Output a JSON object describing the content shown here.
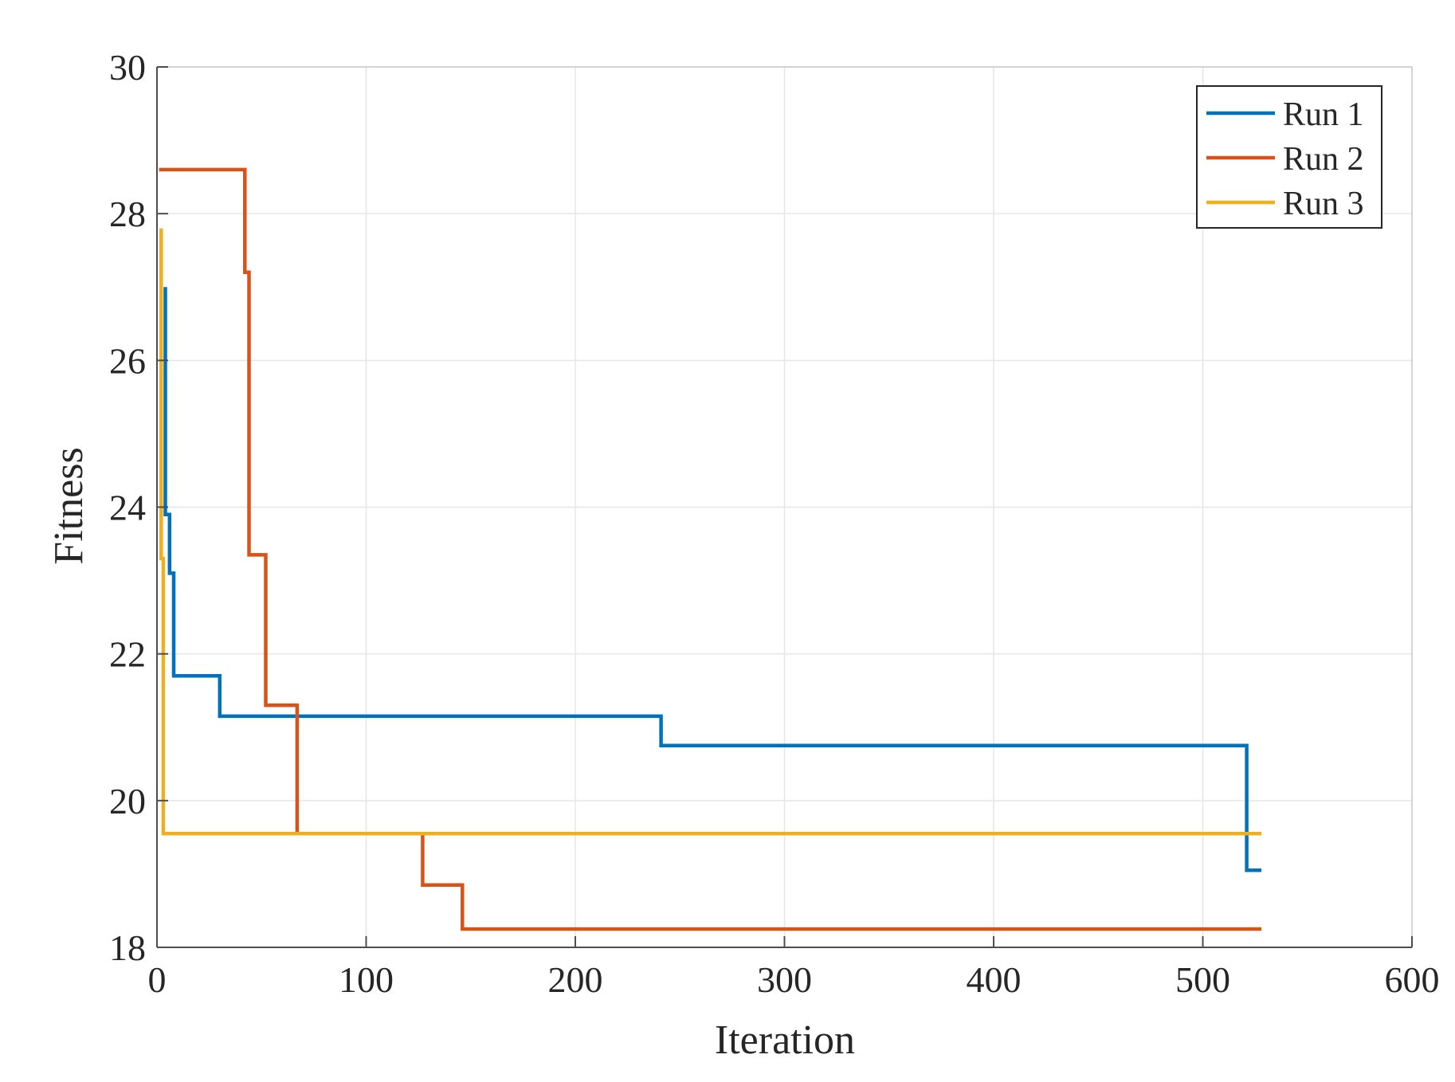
{
  "chart_data": {
    "type": "line",
    "title": "",
    "xlabel": "Iteration",
    "ylabel": "Fitness",
    "xlim": [
      0,
      600
    ],
    "ylim": [
      18,
      30
    ],
    "xticks": [
      0,
      100,
      200,
      300,
      400,
      500,
      600
    ],
    "yticks": [
      18,
      20,
      22,
      24,
      26,
      28,
      30
    ],
    "xtick_labels": [
      "0",
      "100",
      "200",
      "300",
      "400",
      "500",
      "600"
    ],
    "ytick_labels": [
      "18",
      "20",
      "22",
      "24",
      "26",
      "28",
      "30"
    ],
    "grid": true,
    "legend_position": "top-right",
    "series": [
      {
        "name": "Run 1",
        "color": "#0072BD",
        "x": [
          4,
          4,
          6,
          6,
          8,
          8,
          30,
          30,
          241,
          241,
          521,
          521,
          528
        ],
        "y": [
          27.0,
          23.9,
          23.9,
          23.1,
          23.1,
          21.7,
          21.7,
          21.15,
          21.15,
          20.75,
          20.75,
          19.05,
          19.05
        ]
      },
      {
        "name": "Run 2",
        "color": "#D95319",
        "x": [
          1,
          42,
          42,
          44,
          44,
          52,
          52,
          67,
          67,
          127,
          127,
          146,
          146,
          528
        ],
        "y": [
          28.6,
          28.6,
          27.2,
          27.2,
          23.35,
          23.35,
          21.3,
          21.3,
          19.55,
          19.55,
          18.85,
          18.85,
          18.25,
          18.25
        ]
      },
      {
        "name": "Run 3",
        "color": "#EDB120",
        "x": [
          2,
          2,
          3,
          3,
          528
        ],
        "y": [
          27.8,
          23.3,
          23.3,
          19.55,
          19.55
        ]
      }
    ]
  }
}
